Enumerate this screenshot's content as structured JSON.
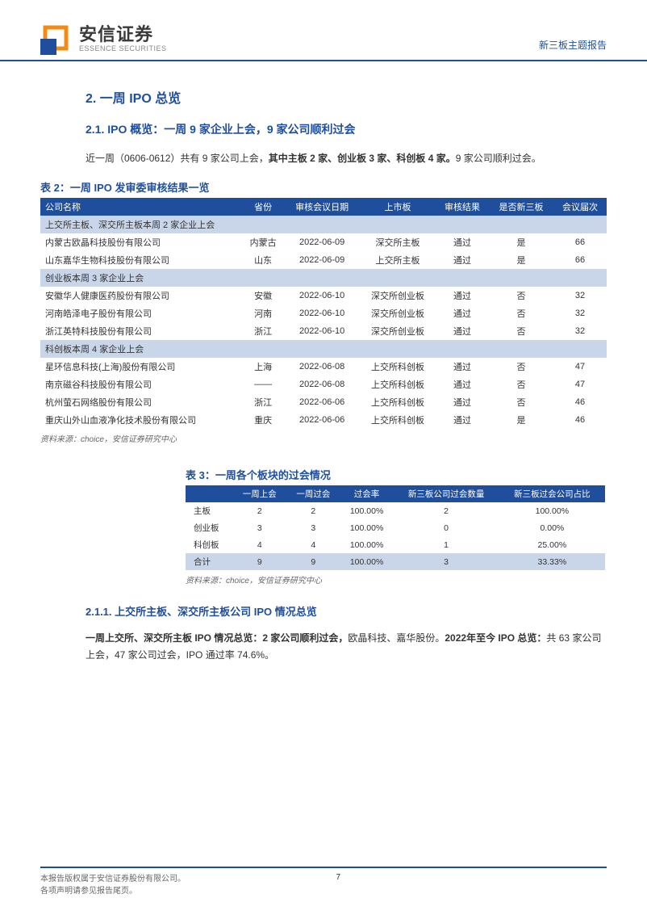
{
  "header": {
    "logo_cn": "安信证券",
    "logo_en": "ESSENCE SECURITIES",
    "right": "新三板主题报告"
  },
  "sections": {
    "h2": "2. 一周 IPO 总览",
    "h3": "2.1. IPO 概览：一周 9 家企业上会，9 家公司顺利过会",
    "intro_a": "近一周（0606-0612）共有 9 家公司上会，",
    "intro_b": "其中主板 2 家、创业板 3 家、科创板 4 家。",
    "intro_c": "9 家公司顺利过会。",
    "h4": "2.1.1. 上交所主板、深交所主板公司 IPO 情况总览",
    "p2_a": "一周上交所、深交所主板 IPO 情况总览：2 家公司顺利过会，",
    "p2_b": "欧晶科技、嘉华股份。",
    "p2_c": "2022年至今 IPO 总览：",
    "p2_d": "共 63 家公司上会，47 家公司过会，IPO 通过率 74.6%。"
  },
  "table2": {
    "title": "表 2：一周 IPO 发审委审核结果一览",
    "headers": [
      "公司名称",
      "省份",
      "审核会议日期",
      "上市板",
      "审核结果",
      "是否新三板",
      "会议届次"
    ],
    "groups": [
      {
        "label": "上交所主板、深交所主板本周 2 家企业上会",
        "rows": [
          [
            "内蒙古欧晶科技股份有限公司",
            "内蒙古",
            "2022-06-09",
            "深交所主板",
            "通过",
            "是",
            "66"
          ],
          [
            "山东嘉华生物科技股份有限公司",
            "山东",
            "2022-06-09",
            "上交所主板",
            "通过",
            "是",
            "66"
          ]
        ]
      },
      {
        "label": "创业板本周 3 家企业上会",
        "rows": [
          [
            "安徽华人健康医药股份有限公司",
            "安徽",
            "2022-06-10",
            "深交所创业板",
            "通过",
            "否",
            "32"
          ],
          [
            "河南皓泽电子股份有限公司",
            "河南",
            "2022-06-10",
            "深交所创业板",
            "通过",
            "否",
            "32"
          ],
          [
            "浙江英特科技股份有限公司",
            "浙江",
            "2022-06-10",
            "深交所创业板",
            "通过",
            "否",
            "32"
          ]
        ]
      },
      {
        "label": "科创板本周 4 家企业上会",
        "rows": [
          [
            "星环信息科技(上海)股份有限公司",
            "上海",
            "2022-06-08",
            "上交所科创板",
            "通过",
            "否",
            "47"
          ],
          [
            "南京磁谷科技股份有限公司",
            "——",
            "2022-06-08",
            "上交所科创板",
            "通过",
            "否",
            "47"
          ],
          [
            "杭州萤石网络股份有限公司",
            "浙江",
            "2022-06-06",
            "上交所科创板",
            "通过",
            "否",
            "46"
          ],
          [
            "重庆山外山血液净化技术股份有限公司",
            "重庆",
            "2022-06-06",
            "上交所科创板",
            "通过",
            "是",
            "46"
          ]
        ]
      }
    ],
    "source": "资料来源：choice，安信证券研究中心"
  },
  "table3": {
    "title": "表 3：一周各个板块的过会情况",
    "headers": [
      "",
      "一周上会",
      "一周过会",
      "过会率",
      "新三板公司过会数量",
      "新三板过会公司占比"
    ],
    "rows": [
      [
        "主板",
        "2",
        "2",
        "100.00%",
        "2",
        "100.00%"
      ],
      [
        "创业板",
        "3",
        "3",
        "100.00%",
        "0",
        "0.00%"
      ],
      [
        "科创板",
        "4",
        "4",
        "100.00%",
        "1",
        "25.00%"
      ]
    ],
    "total": [
      "合计",
      "9",
      "9",
      "100.00%",
      "3",
      "33.33%"
    ],
    "source": "资料来源：choice，安信证券研究中心"
  },
  "footer": {
    "line1": "本报告版权属于安信证券股份有限公司。",
    "line2": "各项声明请参见报告尾页。",
    "page": "7"
  },
  "colors": {
    "primary": "#1f4e9c",
    "section_bg": "#c9d6ea",
    "orange": "#f08c14"
  }
}
